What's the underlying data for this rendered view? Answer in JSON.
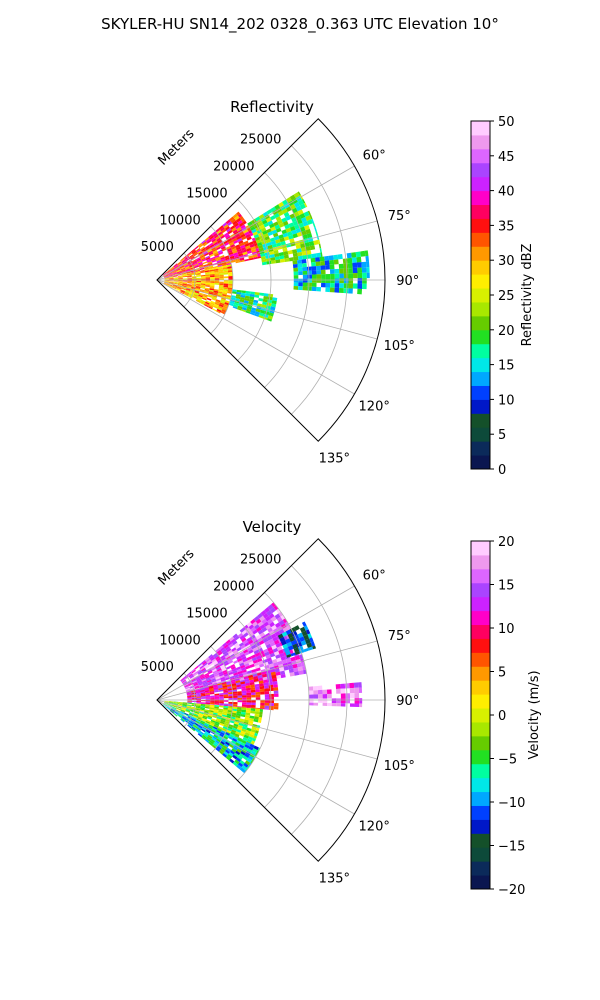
{
  "figure": {
    "title": "SKYLER-HU  SN14_202  0328_0.363 UTC Elevation 10°"
  },
  "panels": [
    {
      "id": "reflectivity",
      "title": "Reflectivity",
      "radial_label": "Meters",
      "range_ticks": [
        "5000",
        "10000",
        "15000",
        "20000",
        "25000"
      ],
      "azimuth_ticks": [
        "60°",
        "75°",
        "90°",
        "105°",
        "120°",
        "135°"
      ],
      "colorbar": {
        "label": "Reflectivity dBZ",
        "ticks": [
          "0",
          "5",
          "10",
          "15",
          "20",
          "25",
          "30",
          "35",
          "40",
          "45",
          "50"
        ]
      }
    },
    {
      "id": "velocity",
      "title": "Velocity",
      "radial_label": "Meters",
      "range_ticks": [
        "5000",
        "10000",
        "15000",
        "20000",
        "25000"
      ],
      "azimuth_ticks": [
        "60°",
        "75°",
        "90°",
        "105°",
        "120°",
        "135°"
      ],
      "colorbar": {
        "label": "Velocity (m/s)",
        "ticks": [
          "20",
          "15",
          "10",
          "5",
          "0",
          "−5",
          "−10",
          "−15",
          "−20"
        ]
      }
    }
  ],
  "chart_data": [
    {
      "type": "heatmap",
      "subtype": "polar-sector (PPI radar)",
      "title": "Reflectivity",
      "theta_range_deg": [
        45,
        135
      ],
      "r_range_m": [
        0,
        30000
      ],
      "r_ticks": [
        5000,
        10000,
        15000,
        20000,
        25000
      ],
      "theta_ticks_deg": [
        60,
        75,
        90,
        105,
        120,
        135
      ],
      "grid": true,
      "colorbar_range": [
        0,
        50
      ],
      "colorbar_label": "Reflectivity dBZ",
      "colors": {
        "scale": [
          "#0a1650",
          "#0b2a5a",
          "#0d4a3a",
          "#14502a",
          "#0018c8",
          "#0040ff",
          "#00a8ff",
          "#00e8e8",
          "#00ffa0",
          "#22e022",
          "#66cc00",
          "#a8e800",
          "#d8f000",
          "#ffee00",
          "#ffcc00",
          "#ff9900",
          "#ff5500",
          "#ff1010",
          "#ff0060",
          "#ff00c8",
          "#cc22ff",
          "#aa44ff",
          "#dd66ff",
          "#ee99ee",
          "#ffccff"
        ]
      },
      "echo_regions": [
        {
          "theta_deg": [
            50,
            78
          ],
          "r_m": [
            1000,
            14000
          ],
          "dBZ": 35
        },
        {
          "theta_deg": [
            78,
            118
          ],
          "r_m": [
            1000,
            10000
          ],
          "dBZ": 30
        },
        {
          "theta_deg": [
            58,
            82
          ],
          "r_m": [
            14000,
            22000
          ],
          "dBZ": 20
        },
        {
          "theta_deg": [
            82,
            94
          ],
          "r_m": [
            18000,
            28000
          ],
          "dBZ": 16
        },
        {
          "theta_deg": [
            97,
            110
          ],
          "r_m": [
            10000,
            16000
          ],
          "dBZ": 18
        }
      ]
    },
    {
      "type": "heatmap",
      "subtype": "polar-sector (PPI radar)",
      "title": "Velocity",
      "theta_range_deg": [
        45,
        135
      ],
      "r_range_m": [
        0,
        30000
      ],
      "r_ticks": [
        5000,
        10000,
        15000,
        20000,
        25000
      ],
      "theta_ticks_deg": [
        60,
        75,
        90,
        105,
        120,
        135
      ],
      "grid": true,
      "colorbar_range": [
        -20,
        20
      ],
      "colorbar_label": "Velocity (m/s)",
      "colors": {
        "scale": [
          "#0a1650",
          "#0b2a5a",
          "#0d4a3a",
          "#14502a",
          "#0018c8",
          "#0040ff",
          "#00a8ff",
          "#00e8e8",
          "#00ffa0",
          "#22e022",
          "#66cc00",
          "#a8e800",
          "#d8f000",
          "#ffee00",
          "#ffcc00",
          "#ff9900",
          "#ff5500",
          "#ff1010",
          "#ff0060",
          "#ff00c8",
          "#cc22ff",
          "#aa44ff",
          "#dd66ff",
          "#ee99ee",
          "#ffccff"
        ]
      },
      "echo_regions": [
        {
          "theta_deg": [
            50,
            80
          ],
          "r_m": [
            4000,
            20000
          ],
          "velocity_ms": 15
        },
        {
          "theta_deg": [
            75,
            95
          ],
          "r_m": [
            4000,
            16000
          ],
          "velocity_ms": 10
        },
        {
          "theta_deg": [
            95,
            115
          ],
          "r_m": [
            1000,
            14000
          ],
          "velocity_ms": -2
        },
        {
          "theta_deg": [
            115,
            130
          ],
          "r_m": [
            1000,
            15000
          ],
          "velocity_ms": -8
        },
        {
          "theta_deg": [
            62,
            72
          ],
          "r_m": [
            18000,
            22000
          ],
          "velocity_ms": -12
        },
        {
          "theta_deg": [
            85,
            92
          ],
          "r_m": [
            20000,
            27000
          ],
          "velocity_ms": 16
        }
      ]
    }
  ]
}
